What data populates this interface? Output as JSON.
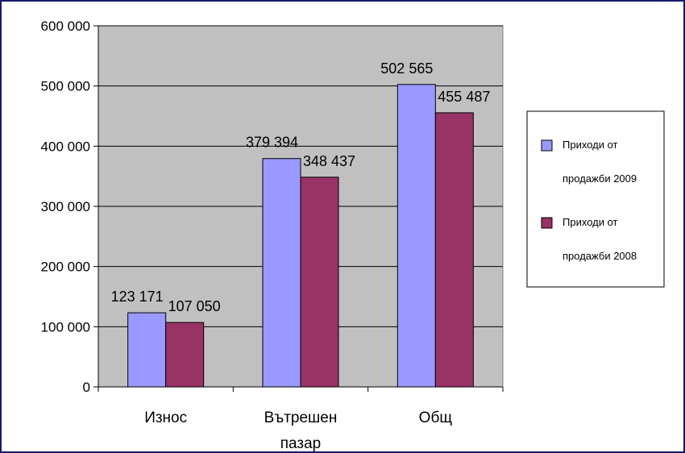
{
  "chart_data": {
    "type": "bar",
    "categories": [
      "Износ",
      "Вътрешен пазар",
      "Общ"
    ],
    "category_lines": [
      [
        "Износ"
      ],
      [
        "Вътрешен",
        "пазар"
      ],
      [
        "Общ"
      ]
    ],
    "series": [
      {
        "name": "Приходи от продажби 2009",
        "name_lines": [
          "Приходи от",
          "продажби 2009"
        ],
        "values": [
          123171,
          379394,
          502565
        ],
        "labels": [
          "123 171",
          "379 394",
          "502 565"
        ],
        "color": "#9999ff"
      },
      {
        "name": "Приходи от продажби 2008",
        "name_lines": [
          "Приходи от",
          "продажби 2008"
        ],
        "values": [
          107050,
          348437,
          455487
        ],
        "labels": [
          "107 050",
          "348 437",
          "455 487"
        ],
        "color": "#993366"
      }
    ],
    "yticks": [
      0,
      100000,
      200000,
      300000,
      400000,
      500000,
      600000
    ],
    "ytick_labels": [
      "0",
      "100 000",
      "200 000",
      "300 000",
      "400 000",
      "500 000",
      "600 000"
    ],
    "ylim": [
      0,
      600000
    ],
    "grid": true,
    "plot_background": "#c0c0c0",
    "legend_position": "right",
    "title": "",
    "xlabel": "",
    "ylabel": ""
  }
}
